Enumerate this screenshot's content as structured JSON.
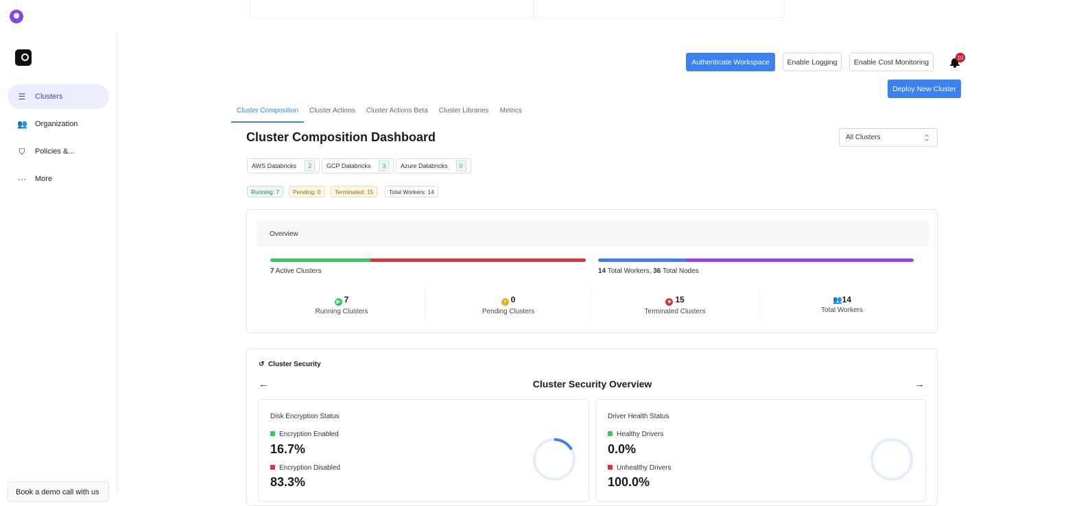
{
  "sidebar": {
    "items": [
      {
        "label": "Clusters",
        "icon": "server-icon",
        "active": true
      },
      {
        "label": "Organization",
        "icon": "users-icon"
      },
      {
        "label": "Policies &...",
        "icon": "shield-icon"
      },
      {
        "label": "More",
        "icon": "more-icon"
      }
    ],
    "demo": "Book a demo call with us"
  },
  "header": {
    "authenticate": "Authenticate Workspace",
    "logging": "Enable Logging",
    "cost": "Enable Cost Monitoring",
    "notifications": "10",
    "deploy": "Deploy New Cluster"
  },
  "tabs": [
    "Cluster Composition",
    "Cluster Actions",
    "Cluster Actions Beta",
    "Cluster Libraries",
    "Metrics"
  ],
  "title": "Cluster Composition Dashboard",
  "filter": "All Clusters",
  "providers": [
    {
      "name": "AWS Databricks",
      "count": "2"
    },
    {
      "name": "GCP Databricks",
      "count": "3"
    },
    {
      "name": "Azure Databricks",
      "count": "0"
    }
  ],
  "chips": [
    "Running: 7",
    "Pending: 0",
    "Terminated: 15",
    "Total Workers: 14"
  ],
  "overview": {
    "title": "Overview",
    "active_count": "7",
    "active_label": "Active Clusters",
    "workers": "14",
    "workers_label": "Total Workers,",
    "nodes": "36",
    "nodes_label": "Total Nodes",
    "cluster_bar": {
      "running": 7,
      "terminated": 15,
      "colors": [
        "#34c759",
        "#e0323c"
      ]
    },
    "node_bar": {
      "workers": 14,
      "total": 50,
      "colors": [
        "#3b7ff0",
        "#9d3cf0"
      ]
    },
    "stats": [
      {
        "value": "7",
        "label": "Running Clusters",
        "color": "#2ecc5a",
        "icon": "play-icon"
      },
      {
        "value": "0",
        "label": "Pending Clusters",
        "color": "#e0b020",
        "icon": "pending-icon"
      },
      {
        "value": "15",
        "label": "Terminated Clusters",
        "color": "#d9323c",
        "icon": "stop-icon"
      },
      {
        "value": "14",
        "label": "Total Workers",
        "color": "#3b7ff0",
        "icon": "users-icon"
      }
    ]
  },
  "security": {
    "title": "Cluster Security",
    "heading": "Cluster Security Overview",
    "cards": [
      {
        "title": "Disk Encryption Status",
        "a_label": "Encryption Enabled",
        "a_value": "16.7%",
        "b_label": "Encryption Disabled",
        "b_value": "83.3%",
        "fraction": 0.167
      },
      {
        "title": "Driver Health Status",
        "a_label": "Healthy Drivers",
        "a_value": "0.0%",
        "b_label": "Unhealthy Drivers",
        "b_value": "100.0%",
        "fraction": 0
      }
    ]
  }
}
